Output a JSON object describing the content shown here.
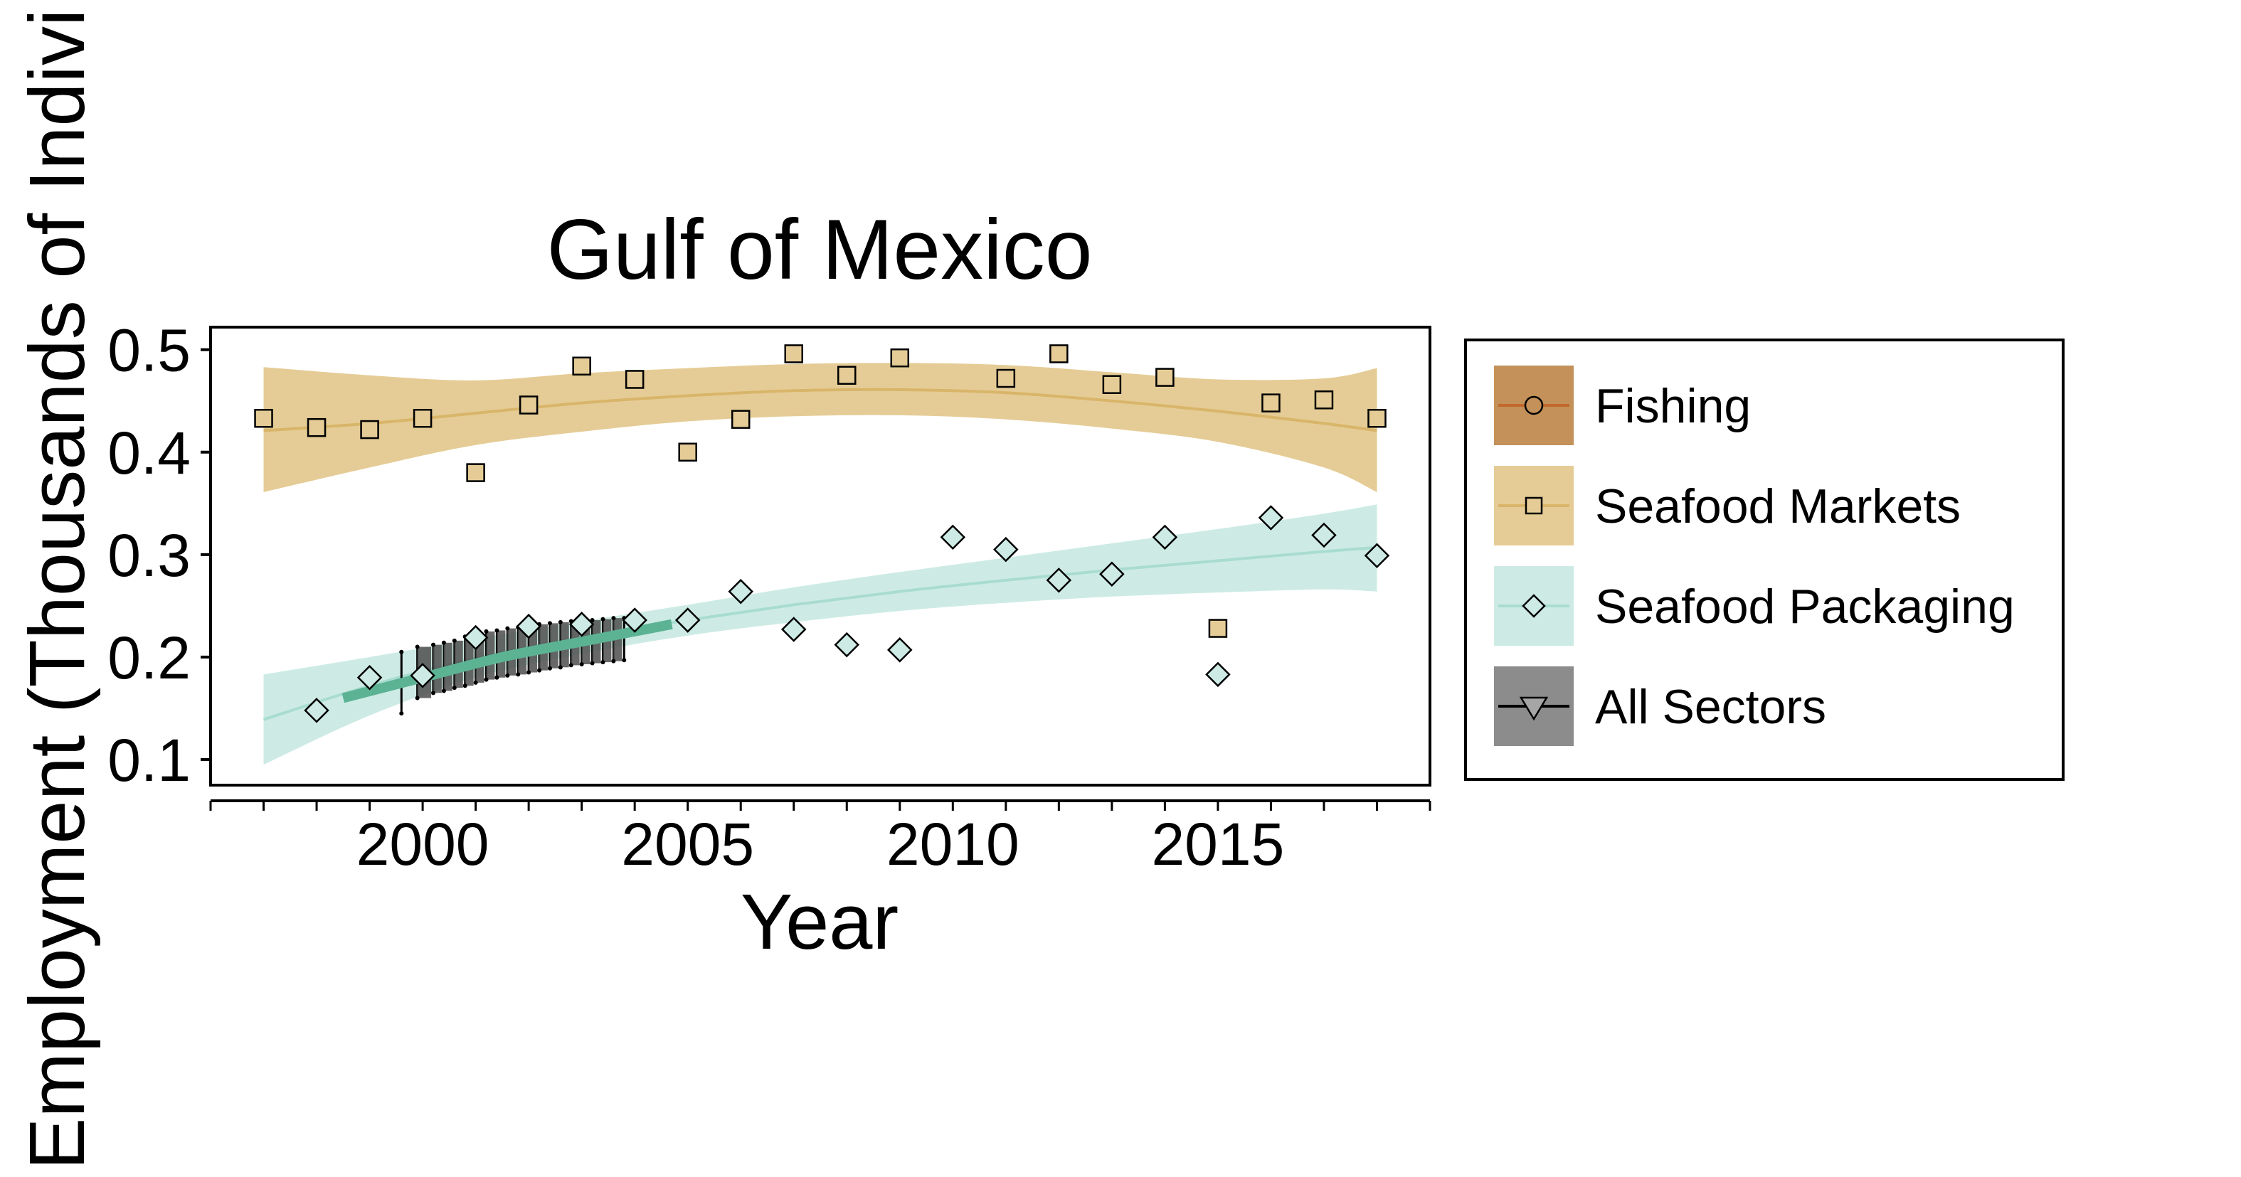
{
  "chart_data": {
    "type": "scatter",
    "title": "Gulf of Mexico",
    "xlabel": "Year",
    "ylabel": "Employment (Thousands of Indivi",
    "xlim": [
      1996.0,
      2019.0
    ],
    "ylim": [
      0.075,
      0.522
    ],
    "x_ticks": [
      2000,
      2005,
      2010,
      2015
    ],
    "x_minor_ticks": [
      1996,
      1997,
      1998,
      1999,
      2000,
      2001,
      2002,
      2003,
      2004,
      2005,
      2006,
      2007,
      2008,
      2009,
      2010,
      2011,
      2012,
      2013,
      2014,
      2015,
      2016,
      2017,
      2018,
      2019
    ],
    "y_ticks": [
      0.1,
      0.2,
      0.3,
      0.4,
      0.5
    ],
    "y_tick_labels": [
      "0.1",
      "0.2",
      "0.3",
      "0.4",
      "0.5"
    ],
    "grid": false,
    "legend_position": "right",
    "legend": [
      {
        "label": "Fishing",
        "color": "#C4915A",
        "line": "#C0692A",
        "marker": "circle"
      },
      {
        "label": "Seafood Markets",
        "color": "#E5CC96",
        "line": "#D9B56A",
        "marker": "square"
      },
      {
        "label": "Seafood Packaging",
        "color": "#CDEBE4",
        "line": "#A9DCD0",
        "marker": "diamond"
      },
      {
        "label": "All Sectors",
        "color": "#8C8C8C",
        "line": "#000000",
        "marker": "triangle-down"
      }
    ],
    "series": [
      {
        "name": "Seafood Markets",
        "marker": "square",
        "fill": "#E5CC96",
        "x": [
          1997,
          1998,
          1999,
          2000,
          2001,
          2002,
          2003,
          2004,
          2005,
          2006,
          2007,
          2008,
          2009,
          2011,
          2012,
          2013,
          2014,
          2015,
          2016,
          2017,
          2018
        ],
        "y": [
          0.433,
          0.424,
          0.422,
          0.433,
          0.38,
          0.446,
          0.484,
          0.471,
          0.4,
          0.432,
          0.496,
          0.475,
          0.492,
          0.472,
          0.496,
          0.466,
          0.473,
          0.228,
          0.448,
          0.451,
          0.433
        ],
        "trend": {
          "x": [
            1997,
            1999,
            2001,
            2003,
            2005,
            2007,
            2009,
            2011,
            2013,
            2015,
            2017,
            2018
          ],
          "y": [
            0.421,
            0.428,
            0.438,
            0.448,
            0.455,
            0.46,
            0.461,
            0.458,
            0.45,
            0.44,
            0.428,
            0.421
          ],
          "lower": [
            0.361,
            0.385,
            0.407,
            0.42,
            0.43,
            0.435,
            0.436,
            0.432,
            0.423,
            0.41,
            0.385,
            0.361
          ],
          "upper": [
            0.483,
            0.475,
            0.47,
            0.477,
            0.482,
            0.486,
            0.487,
            0.485,
            0.478,
            0.471,
            0.472,
            0.482
          ]
        }
      },
      {
        "name": "Seafood Packaging",
        "marker": "diamond",
        "fill": "#CDEBE4",
        "x": [
          1998,
          1999,
          2000,
          2001,
          2002,
          2003,
          2004,
          2005,
          2006,
          2007,
          2008,
          2009,
          2010,
          2011,
          2012,
          2013,
          2014,
          2015,
          2016,
          2017,
          2018
        ],
        "y": [
          0.148,
          0.18,
          0.182,
          0.219,
          0.23,
          0.232,
          0.236,
          0.236,
          0.264,
          0.227,
          0.212,
          0.207,
          0.317,
          0.305,
          0.275,
          0.281,
          0.317,
          0.183,
          0.336,
          0.319,
          0.299
        ],
        "trend": {
          "x": [
            1997,
            1999,
            2001,
            2003,
            2005,
            2007,
            2009,
            2011,
            2013,
            2015,
            2017,
            2018
          ],
          "y": [
            0.139,
            0.172,
            0.199,
            0.219,
            0.236,
            0.251,
            0.264,
            0.275,
            0.285,
            0.294,
            0.303,
            0.307
          ],
          "lower": [
            0.095,
            0.143,
            0.18,
            0.203,
            0.221,
            0.234,
            0.245,
            0.253,
            0.259,
            0.263,
            0.266,
            0.264
          ],
          "upper": [
            0.183,
            0.2,
            0.218,
            0.235,
            0.251,
            0.268,
            0.283,
            0.297,
            0.311,
            0.325,
            0.34,
            0.349
          ]
        }
      },
      {
        "name": "All Sectors",
        "trend": {
          "x": [
            1998.5,
            2000,
            2001.5,
            2003,
            2004.7
          ],
          "y": [
            0.16,
            0.18,
            0.2,
            0.215,
            0.232
          ],
          "color": "#5CB394"
        },
        "range_bars": {
          "x": [
            1999.6,
            1999.9,
            2000.2,
            2000.4,
            2000.6,
            2000.8,
            2001.0,
            2001.2,
            2001.4,
            2001.6,
            2001.8,
            2002.0,
            2002.2,
            2002.4,
            2002.6,
            2002.8,
            2003.0,
            2003.2,
            2003.4,
            2003.6,
            2003.8
          ],
          "lower": [
            0.145,
            0.16,
            0.165,
            0.167,
            0.17,
            0.172,
            0.175,
            0.178,
            0.18,
            0.182,
            0.183,
            0.185,
            0.187,
            0.189,
            0.19,
            0.192,
            0.193,
            0.194,
            0.195,
            0.196,
            0.197
          ],
          "upper": [
            0.205,
            0.21,
            0.212,
            0.214,
            0.216,
            0.22,
            0.222,
            0.225,
            0.226,
            0.228,
            0.229,
            0.23,
            0.232,
            0.233,
            0.234,
            0.235,
            0.236,
            0.236,
            0.237,
            0.238,
            0.238
          ]
        }
      }
    ]
  }
}
